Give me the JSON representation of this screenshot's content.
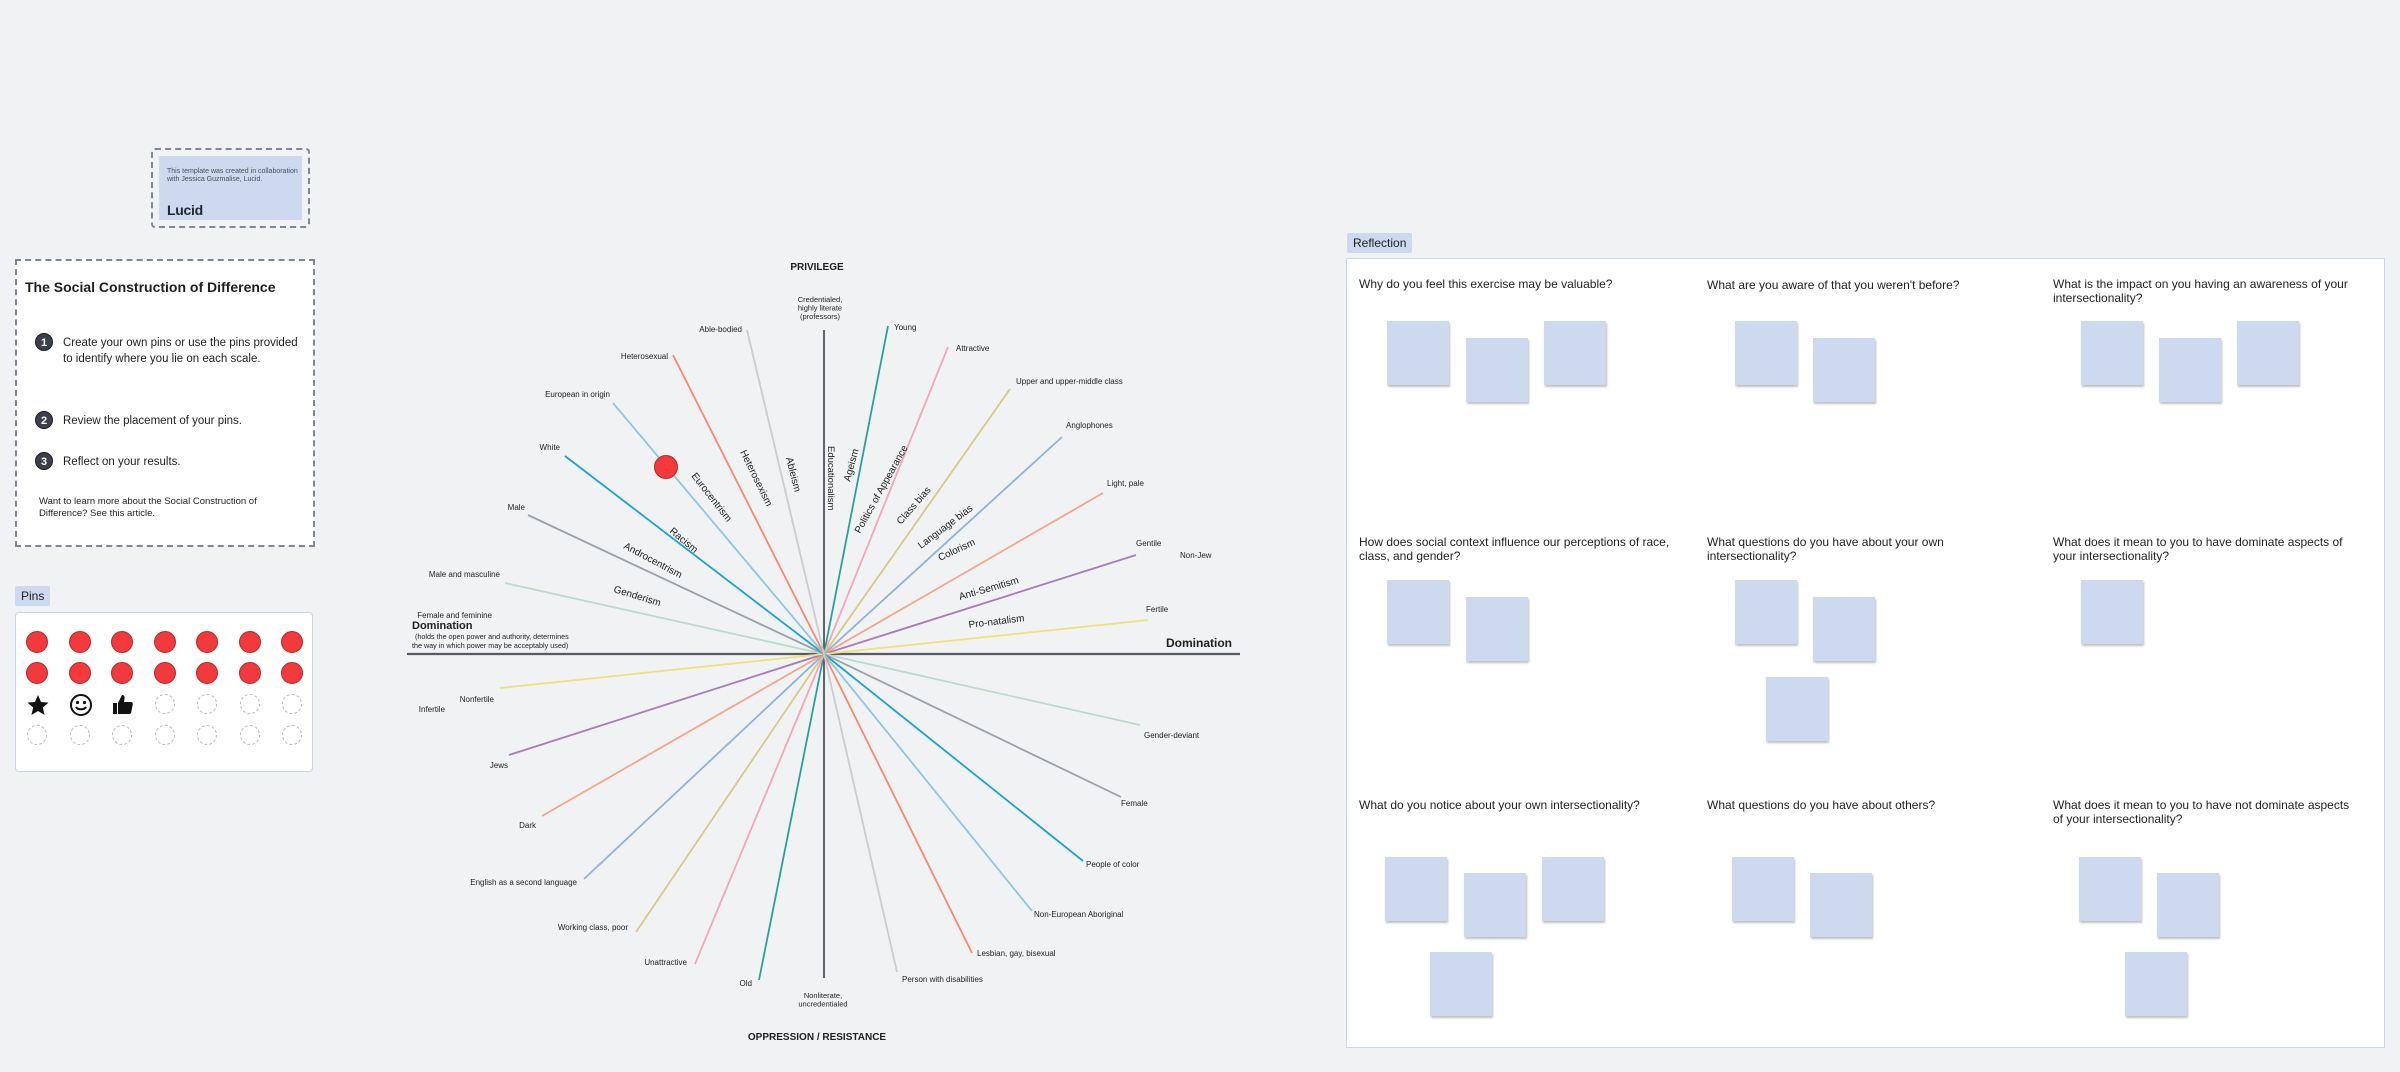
{
  "credit": {
    "text": "This template was created in collaboration with Jessica Guzmalise, Lucid.",
    "logo": "Lucid"
  },
  "instructions": {
    "title": "The Social Construction of Difference",
    "steps": [
      {
        "num": "1",
        "text": "Create your own pins or use the pins provided to identify where you lie on each scale."
      },
      {
        "num": "2",
        "text": "Review the placement of your pins."
      },
      {
        "num": "3",
        "text": "Reflect on your results."
      }
    ],
    "learn_more": "Want to learn more about the Social Construction of Difference? See this article."
  },
  "pins": {
    "label": "Pins",
    "rows": [
      [
        "red",
        "red",
        "red",
        "red",
        "red",
        "red",
        "red"
      ],
      [
        "red",
        "red",
        "red",
        "red",
        "red",
        "red",
        "red"
      ],
      [
        "star-icon",
        "smiley-icon",
        "thumbs-up-icon",
        "empty",
        "empty",
        "empty",
        "empty"
      ],
      [
        "empty",
        "empty",
        "empty",
        "empty",
        "empty",
        "empty",
        "empty"
      ]
    ],
    "pin_color": "#f2393b"
  },
  "wheel": {
    "top_label": "PRIVILEGE",
    "bottom_label": "OPPRESSION / RESISTANCE",
    "left_title": "Domination",
    "left_subtitle_1": "(holds the open power and authority, determines",
    "left_subtitle_2": "the way in which power may be acceptably used)",
    "right_title": "Domination",
    "top_axis_label": [
      "Credentialed,",
      "highly literate",
      "(professors)"
    ],
    "bottom_axis_label": [
      "Nonliterate,",
      "uncredentialed"
    ],
    "axis_name": "Educationalism",
    "spokes": [
      {
        "name": "Ageism",
        "privileged": "Young",
        "oppressed": "Old",
        "color": "#2aa198"
      },
      {
        "name": "Politics of Appearance",
        "privileged": "Attractive",
        "oppressed": "Unattractive",
        "color": "#f4a6b6"
      },
      {
        "name": "Class bias",
        "privileged": "Upper and upper-middle class",
        "oppressed": "Working class, poor",
        "color": "#d5c98a"
      },
      {
        "name": "Language bias",
        "privileged": "Anglophones",
        "oppressed": "English as a second language",
        "color": "#8eb3d9"
      },
      {
        "name": "Colorism",
        "privileged": "Light, pale",
        "oppressed": "Dark",
        "color": "#f4a58a"
      },
      {
        "name": "Anti-Semitism",
        "privileged": "Gentile",
        "privileged_2": "Non-Jew",
        "oppressed": "Jews",
        "color": "#a77bb8"
      },
      {
        "name": "Pro-natalism",
        "privileged": "Fertile",
        "oppressed": "Infertile",
        "oppressed_2": "Nonfertile",
        "color": "#ede27a"
      },
      {
        "name": "Genderism",
        "privileged": "Male and masculine",
        "privileged_2": "Female and feminine",
        "oppressed": "Gender-deviant",
        "color": "#b7dcca"
      },
      {
        "name": "Androcentrism",
        "privileged": "Male",
        "oppressed": "Female",
        "color": "#9aa0a8"
      },
      {
        "name": "Racism",
        "privileged": "White",
        "oppressed": "People of color",
        "color": "#1aa3d0"
      },
      {
        "name": "Eurocentrism",
        "privileged": "European in origin",
        "oppressed": "Non-European Aboriginal",
        "color": "#8ec6e4"
      },
      {
        "name": "Heterosexism",
        "privileged": "Heterosexual",
        "oppressed": "Lesbian, gay, bisexual",
        "color": "#f48b6e"
      },
      {
        "name": "Ableism",
        "privileged": "Able-bodied",
        "oppressed": "Person with disabilities",
        "color": "#c9ccd1"
      }
    ]
  },
  "reflection": {
    "label": "Reflection",
    "questions": [
      "Why do you feel this exercise may be valuable?",
      "What are you aware of that you weren't before?",
      "What is the impact on you having an awareness of your intersectionality?",
      "How does social context influence our perceptions of race, class, and gender?",
      "What questions do you have about your own intersectionality?",
      "What does it mean to you to have dominate aspects of your intersectionality?",
      "What do you notice about your own intersectionality?",
      "What questions do you have about others?",
      "What does it mean to you to have not dominate aspects of your intersectionality?"
    ],
    "sticky_color": "#ccd9ee"
  }
}
